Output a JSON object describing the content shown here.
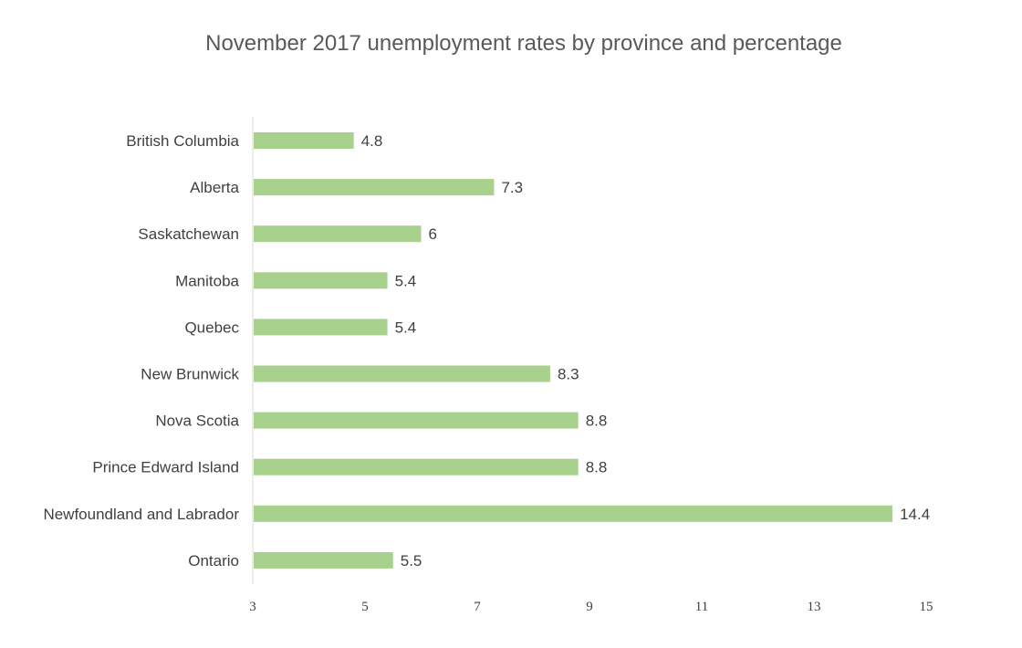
{
  "chart_data": {
    "type": "bar",
    "orientation": "horizontal",
    "title": "November 2017 unemployment rates by province and percentage",
    "categories": [
      "British Columbia",
      "Alberta",
      "Saskatchewan",
      "Manitoba",
      "Quebec",
      "New Brunwick",
      "Nova Scotia",
      "Prince Edward Island",
      "Newfoundland and Labrador",
      "Ontario"
    ],
    "values": [
      4.8,
      7.3,
      6,
      5.4,
      5.4,
      8.3,
      8.8,
      8.8,
      14.4,
      5.5
    ],
    "value_labels": [
      "4.8",
      "7.3",
      "6",
      "5.4",
      "5.4",
      "8.3",
      "8.8",
      "8.8",
      "14.4",
      "5.5"
    ],
    "xlim": [
      3,
      15
    ],
    "xticks": [
      3,
      5,
      7,
      9,
      11,
      13,
      15
    ],
    "xtick_labels": [
      "3",
      "5",
      "7",
      "9",
      "11",
      "13",
      "15"
    ],
    "bar_color": "#a9d18e",
    "grid": false,
    "legend": "none"
  }
}
